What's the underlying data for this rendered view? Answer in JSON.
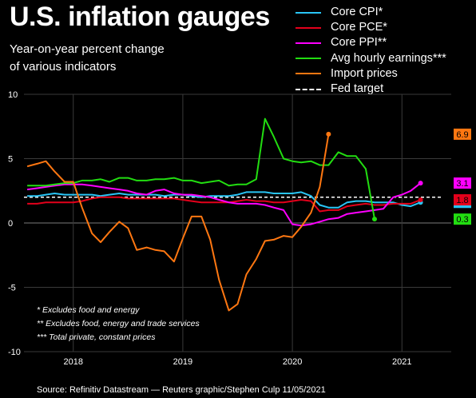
{
  "chart_data": {
    "type": "line",
    "title": "U.S. inflation gauges",
    "subtitle": [
      "Year-on-year percent change",
      "of various indicators"
    ],
    "ylim": [
      -10,
      10
    ],
    "yticks": [
      10,
      5,
      0,
      -5,
      -10
    ],
    "xlim": [
      2017.55,
      2021.45
    ],
    "xticks": [
      {
        "label": "2018",
        "value": 2018.0
      },
      {
        "label": "2019",
        "value": 2019.0
      },
      {
        "label": "2020",
        "value": 2020.0
      },
      {
        "label": "2021",
        "value": 2021.0
      }
    ],
    "reference_line": {
      "name": "Fed target",
      "value": 2.0,
      "color": "#ffffff"
    },
    "legend_position": "top-right",
    "series": [
      {
        "name": "Core CPI*",
        "color": "#29c5f6",
        "end_label": "1.6",
        "points": [
          [
            2017.58,
            2.1
          ],
          [
            2017.67,
            2.1
          ],
          [
            2017.75,
            2.2
          ],
          [
            2017.83,
            2.3
          ],
          [
            2017.92,
            2.2
          ],
          [
            2018.0,
            2.2
          ],
          [
            2018.08,
            2.2
          ],
          [
            2018.17,
            2.2
          ],
          [
            2018.25,
            2.1
          ],
          [
            2018.33,
            2.2
          ],
          [
            2018.42,
            2.3
          ],
          [
            2018.5,
            2.2
          ],
          [
            2018.58,
            2.2
          ],
          [
            2018.67,
            2.2
          ],
          [
            2018.75,
            2.2
          ],
          [
            2018.83,
            2.1
          ],
          [
            2018.92,
            2.2
          ],
          [
            2019.0,
            2.2
          ],
          [
            2019.08,
            2.1
          ],
          [
            2019.17,
            2.0
          ],
          [
            2019.25,
            2.1
          ],
          [
            2019.33,
            2.1
          ],
          [
            2019.42,
            2.1
          ],
          [
            2019.5,
            2.2
          ],
          [
            2019.58,
            2.4
          ],
          [
            2019.67,
            2.4
          ],
          [
            2019.75,
            2.4
          ],
          [
            2019.83,
            2.3
          ],
          [
            2019.92,
            2.3
          ],
          [
            2020.0,
            2.3
          ],
          [
            2020.08,
            2.4
          ],
          [
            2020.17,
            2.1
          ],
          [
            2020.25,
            1.4
          ],
          [
            2020.33,
            1.2
          ],
          [
            2020.42,
            1.2
          ],
          [
            2020.5,
            1.6
          ],
          [
            2020.58,
            1.7
          ],
          [
            2020.67,
            1.7
          ],
          [
            2020.75,
            1.6
          ],
          [
            2020.83,
            1.6
          ],
          [
            2020.92,
            1.6
          ],
          [
            2021.0,
            1.4
          ],
          [
            2021.08,
            1.3
          ],
          [
            2021.17,
            1.6
          ]
        ]
      },
      {
        "name": "Core PCE*",
        "color": "#e3001b",
        "end_label": "1.8",
        "points": [
          [
            2017.58,
            1.5
          ],
          [
            2017.67,
            1.5
          ],
          [
            2017.75,
            1.6
          ],
          [
            2017.83,
            1.6
          ],
          [
            2017.92,
            1.6
          ],
          [
            2018.0,
            1.6
          ],
          [
            2018.08,
            1.7
          ],
          [
            2018.17,
            1.9
          ],
          [
            2018.25,
            2.0
          ],
          [
            2018.33,
            2.0
          ],
          [
            2018.42,
            2.0
          ],
          [
            2018.5,
            1.9
          ],
          [
            2018.58,
            1.9
          ],
          [
            2018.67,
            1.9
          ],
          [
            2018.75,
            1.9
          ],
          [
            2018.83,
            1.9
          ],
          [
            2018.92,
            1.9
          ],
          [
            2019.0,
            1.8
          ],
          [
            2019.08,
            1.7
          ],
          [
            2019.17,
            1.6
          ],
          [
            2019.25,
            1.6
          ],
          [
            2019.33,
            1.6
          ],
          [
            2019.42,
            1.6
          ],
          [
            2019.5,
            1.7
          ],
          [
            2019.58,
            1.8
          ],
          [
            2019.67,
            1.7
          ],
          [
            2019.75,
            1.7
          ],
          [
            2019.83,
            1.6
          ],
          [
            2019.92,
            1.6
          ],
          [
            2020.0,
            1.7
          ],
          [
            2020.08,
            1.8
          ],
          [
            2020.17,
            1.7
          ],
          [
            2020.25,
            0.9
          ],
          [
            2020.33,
            1.0
          ],
          [
            2020.42,
            1.0
          ],
          [
            2020.5,
            1.3
          ],
          [
            2020.58,
            1.4
          ],
          [
            2020.67,
            1.5
          ],
          [
            2020.75,
            1.4
          ],
          [
            2020.83,
            1.4
          ],
          [
            2020.92,
            1.5
          ],
          [
            2021.0,
            1.5
          ],
          [
            2021.08,
            1.5
          ],
          [
            2021.17,
            1.8
          ]
        ]
      },
      {
        "name": "Core PPI**",
        "color": "#ff00ff",
        "end_label": "3.1",
        "points": [
          [
            2017.58,
            2.6
          ],
          [
            2017.67,
            2.7
          ],
          [
            2017.75,
            2.8
          ],
          [
            2017.83,
            2.9
          ],
          [
            2017.92,
            3.0
          ],
          [
            2018.0,
            3.0
          ],
          [
            2018.08,
            3.0
          ],
          [
            2018.17,
            2.9
          ],
          [
            2018.25,
            2.8
          ],
          [
            2018.33,
            2.7
          ],
          [
            2018.42,
            2.6
          ],
          [
            2018.5,
            2.5
          ],
          [
            2018.58,
            2.3
          ],
          [
            2018.67,
            2.2
          ],
          [
            2018.75,
            2.5
          ],
          [
            2018.83,
            2.6
          ],
          [
            2018.92,
            2.3
          ],
          [
            2019.0,
            2.2
          ],
          [
            2019.08,
            2.2
          ],
          [
            2019.17,
            2.1
          ],
          [
            2019.25,
            2.0
          ],
          [
            2019.33,
            1.8
          ],
          [
            2019.42,
            1.6
          ],
          [
            2019.5,
            1.5
          ],
          [
            2019.58,
            1.5
          ],
          [
            2019.67,
            1.5
          ],
          [
            2019.75,
            1.4
          ],
          [
            2019.83,
            1.2
          ],
          [
            2019.92,
            1.0
          ],
          [
            2020.0,
            -0.1
          ],
          [
            2020.08,
            -0.2
          ],
          [
            2020.17,
            -0.1
          ],
          [
            2020.25,
            0.1
          ],
          [
            2020.33,
            0.3
          ],
          [
            2020.42,
            0.4
          ],
          [
            2020.5,
            0.7
          ],
          [
            2020.58,
            0.8
          ],
          [
            2020.67,
            0.9
          ],
          [
            2020.75,
            1.0
          ],
          [
            2020.83,
            1.1
          ],
          [
            2020.92,
            2.0
          ],
          [
            2021.0,
            2.2
          ],
          [
            2021.08,
            2.5
          ],
          [
            2021.17,
            3.1
          ]
        ]
      },
      {
        "name": "Avg hourly earnings***",
        "color": "#22dd11",
        "end_label": "0.3",
        "points": [
          [
            2017.58,
            2.9
          ],
          [
            2017.67,
            2.9
          ],
          [
            2017.75,
            2.9
          ],
          [
            2017.83,
            3.0
          ],
          [
            2017.92,
            3.1
          ],
          [
            2018.0,
            3.1
          ],
          [
            2018.08,
            3.3
          ],
          [
            2018.17,
            3.3
          ],
          [
            2018.25,
            3.4
          ],
          [
            2018.33,
            3.2
          ],
          [
            2018.42,
            3.5
          ],
          [
            2018.5,
            3.5
          ],
          [
            2018.58,
            3.3
          ],
          [
            2018.67,
            3.3
          ],
          [
            2018.75,
            3.4
          ],
          [
            2018.83,
            3.4
          ],
          [
            2018.92,
            3.5
          ],
          [
            2019.0,
            3.3
          ],
          [
            2019.08,
            3.3
          ],
          [
            2019.17,
            3.1
          ],
          [
            2019.25,
            3.2
          ],
          [
            2019.33,
            3.3
          ],
          [
            2019.42,
            2.9
          ],
          [
            2019.5,
            3.0
          ],
          [
            2019.58,
            3.0
          ],
          [
            2019.67,
            3.4
          ],
          [
            2019.75,
            8.1
          ],
          [
            2019.83,
            6.7
          ],
          [
            2019.92,
            5.0
          ],
          [
            2020.0,
            4.8
          ],
          [
            2020.08,
            4.7
          ],
          [
            2020.17,
            4.8
          ],
          [
            2020.25,
            4.5
          ],
          [
            2020.33,
            4.5
          ],
          [
            2020.42,
            5.5
          ],
          [
            2020.5,
            5.2
          ],
          [
            2020.58,
            5.2
          ],
          [
            2020.67,
            4.2
          ],
          [
            2020.75,
            0.3
          ]
        ]
      },
      {
        "name": "Import prices",
        "color": "#ff7711",
        "end_label": "6.9",
        "points": [
          [
            2017.58,
            4.4
          ],
          [
            2017.67,
            4.6
          ],
          [
            2017.75,
            4.8
          ],
          [
            2017.83,
            4.0
          ],
          [
            2017.92,
            3.2
          ],
          [
            2018.0,
            3.2
          ],
          [
            2018.08,
            1.2
          ],
          [
            2018.17,
            -0.8
          ],
          [
            2018.25,
            -1.5
          ],
          [
            2018.33,
            -0.7
          ],
          [
            2018.42,
            0.1
          ],
          [
            2018.5,
            -0.4
          ],
          [
            2018.58,
            -2.1
          ],
          [
            2018.67,
            -1.9
          ],
          [
            2018.75,
            -2.1
          ],
          [
            2018.83,
            -2.2
          ],
          [
            2018.92,
            -3.0
          ],
          [
            2019.0,
            -1.2
          ],
          [
            2019.08,
            0.5
          ],
          [
            2019.17,
            0.5
          ],
          [
            2019.25,
            -1.3
          ],
          [
            2019.33,
            -4.4
          ],
          [
            2019.42,
            -6.8
          ],
          [
            2019.5,
            -6.3
          ],
          [
            2019.58,
            -4.0
          ],
          [
            2019.67,
            -2.8
          ],
          [
            2019.75,
            -1.4
          ],
          [
            2019.83,
            -1.3
          ],
          [
            2019.92,
            -1.0
          ],
          [
            2020.0,
            -1.1
          ],
          [
            2020.08,
            -0.3
          ],
          [
            2020.17,
            0.8
          ],
          [
            2020.25,
            2.8
          ],
          [
            2020.33,
            6.9
          ]
        ]
      }
    ],
    "notes": [
      "* Excludes food and energy",
      "** Excludes food, energy and trade services",
      "*** Total private, constant prices"
    ],
    "source": "Source: Refinitiv Datastream — Reuters graphic/Stephen Culp 11/05/2021"
  }
}
